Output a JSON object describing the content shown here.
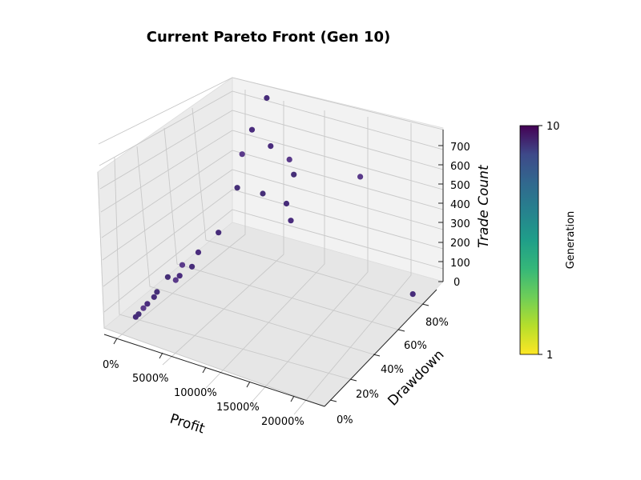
{
  "chart_data": {
    "type": "scatter",
    "projection": "3d",
    "title": "Current Pareto Front (Gen 10)",
    "xlabel": "Profit",
    "ylabel": "Drawdown",
    "zlabel": "Trade Count",
    "x_ticks": [
      "0%",
      "5000%",
      "10000%",
      "15000%",
      "20000%"
    ],
    "y_ticks": [
      "0%",
      "20%",
      "40%",
      "60%",
      "80%"
    ],
    "z_ticks": [
      "0",
      "100",
      "200",
      "300",
      "400",
      "500",
      "600",
      "700"
    ],
    "colorbar": {
      "label": "Generation",
      "min_label": "1",
      "max_label": "10",
      "colormap": "viridis"
    },
    "grid": true,
    "point_colors": [
      "#472c7a",
      "#4a2c7d",
      "#5a3a8a",
      "#462f78"
    ],
    "points": [
      {
        "profit_pct": 22500,
        "drawdown_pct": 90,
        "trade_count": 20,
        "generation": 10
      },
      {
        "profit_pct": 7000,
        "drawdown_pct": 85,
        "trade_count": 580,
        "generation": 9
      },
      {
        "profit_pct": 8000,
        "drawdown_pct": 95,
        "trade_count": 470,
        "generation": 10
      },
      {
        "profit_pct": 8500,
        "drawdown_pct": 95,
        "trade_count": 400,
        "generation": 10
      },
      {
        "profit_pct": 8000,
        "drawdown_pct": 92,
        "trade_count": 260,
        "generation": 10
      },
      {
        "profit_pct": 8500,
        "drawdown_pct": 92,
        "trade_count": 180,
        "generation": 10
      },
      {
        "profit_pct": 3000,
        "drawdown_pct": 92,
        "trade_count": 440,
        "generation": 10
      },
      {
        "profit_pct": 4000,
        "drawdown_pct": 78,
        "trade_count": 360,
        "generation": 10
      },
      {
        "profit_pct": 5000,
        "drawdown_pct": 99,
        "trade_count": 720,
        "generation": 8
      },
      {
        "profit_pct": 5000,
        "drawdown_pct": 84,
        "trade_count": 640,
        "generation": 8
      },
      {
        "profit_pct": 16000,
        "drawdown_pct": 95,
        "trade_count": 500,
        "generation": 8
      },
      {
        "profit_pct": 5000,
        "drawdown_pct": 95,
        "trade_count": 250,
        "generation": 8
      },
      {
        "profit_pct": 3000,
        "drawdown_pct": 68,
        "trade_count": 170,
        "generation": 10
      },
      {
        "profit_pct": 2500,
        "drawdown_pct": 52,
        "trade_count": 150,
        "generation": 10
      },
      {
        "profit_pct": 1800,
        "drawdown_pct": 42,
        "trade_count": 130,
        "generation": 9
      },
      {
        "profit_pct": 1500,
        "drawdown_pct": 30,
        "trade_count": 130,
        "generation": 10
      },
      {
        "profit_pct": 2000,
        "drawdown_pct": 50,
        "trade_count": 80,
        "generation": 10
      },
      {
        "profit_pct": 1500,
        "drawdown_pct": 42,
        "trade_count": 70,
        "generation": 9
      },
      {
        "profit_pct": 1500,
        "drawdown_pct": 38,
        "trade_count": 70,
        "generation": 10
      },
      {
        "profit_pct": 500,
        "drawdown_pct": 28,
        "trade_count": 50,
        "generation": 10
      },
      {
        "profit_pct": 500,
        "drawdown_pct": 25,
        "trade_count": 40,
        "generation": 10
      },
      {
        "profit_pct": 300,
        "drawdown_pct": 20,
        "trade_count": 30,
        "generation": 10
      },
      {
        "profit_pct": 300,
        "drawdown_pct": 16,
        "trade_count": 30,
        "generation": 9
      },
      {
        "profit_pct": 200,
        "drawdown_pct": 12,
        "trade_count": 20,
        "generation": 10
      },
      {
        "profit_pct": 100,
        "drawdown_pct": 10,
        "trade_count": 15,
        "generation": 10
      }
    ]
  }
}
